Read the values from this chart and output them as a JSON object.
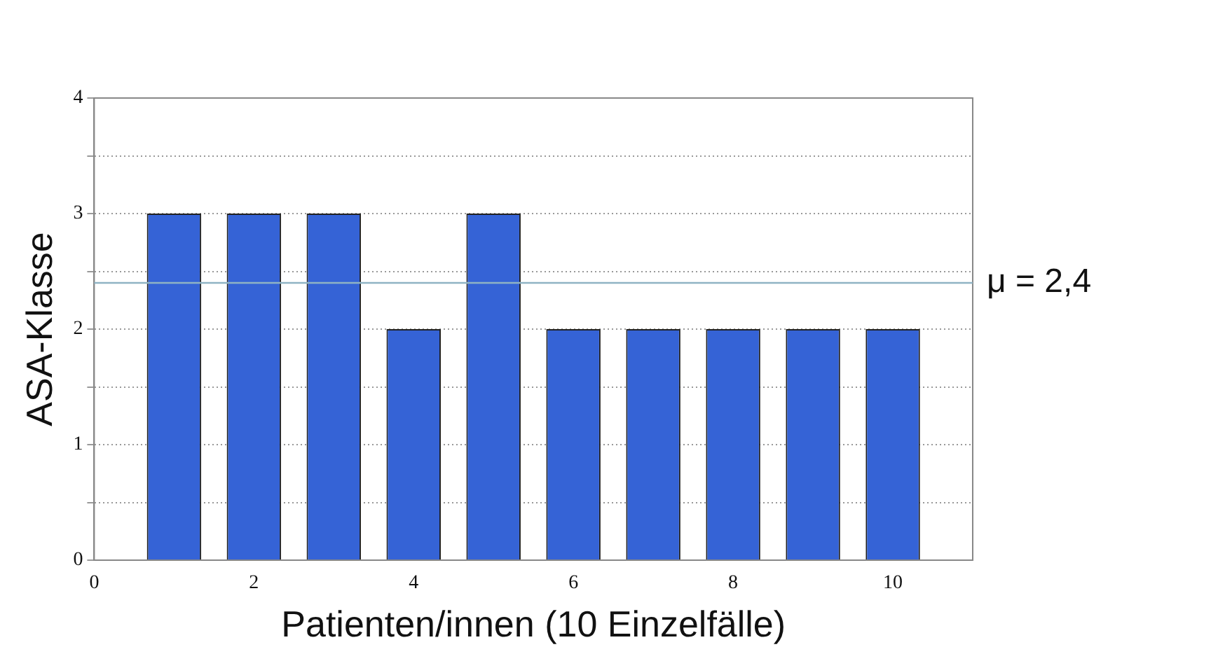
{
  "chart_data": {
    "type": "bar",
    "x": [
      1,
      2,
      3,
      4,
      5,
      6,
      7,
      8,
      9,
      10
    ],
    "values": [
      3,
      3,
      3,
      2,
      3,
      2,
      2,
      2,
      2,
      2
    ],
    "color": "#3563d6",
    "xlabel": "Patienten/innen (10 Einzelfälle)",
    "ylabel": "ASA-Klasse",
    "xlim": [
      0,
      11
    ],
    "xticks": [
      0,
      2,
      4,
      6,
      8,
      10
    ],
    "ylim": [
      0,
      4
    ],
    "yticks": [
      0,
      {
        "value": 0.5,
        "label": null
      },
      1,
      {
        "value": 1.5,
        "label": null
      },
      2,
      {
        "value": 2.5,
        "label": null
      },
      3,
      {
        "value": 3.5,
        "label": null
      },
      4
    ],
    "grid": "y",
    "legend": false,
    "ref_lines": [
      {
        "axis": "y",
        "value": 2.4,
        "label": "μ = 2,4",
        "color": "#8fb3c4"
      }
    ]
  }
}
